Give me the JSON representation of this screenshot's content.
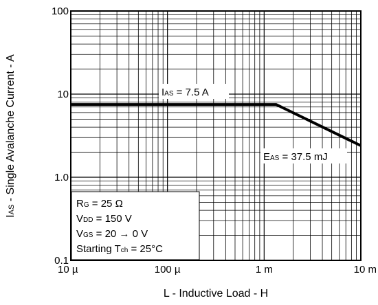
{
  "chart_data": {
    "type": "line",
    "x_scale": "log",
    "y_scale": "log",
    "xlim": [
      1e-05,
      0.01
    ],
    "ylim": [
      0.1,
      100
    ],
    "grid": true,
    "xlabel": "L - Inductive Load - H",
    "ylabel": "IAS - Single Avalanche Current - A",
    "x_ticks": [
      {
        "value": 1e-05,
        "label": "10 µ"
      },
      {
        "value": 0.0001,
        "label": "100 µ"
      },
      {
        "value": 0.001,
        "label": "1 m"
      },
      {
        "value": 0.01,
        "label": "10 m"
      }
    ],
    "y_ticks": [
      {
        "value": 0.1,
        "label": "0.1"
      },
      {
        "value": 1,
        "label": "1.0"
      },
      {
        "value": 10,
        "label": "10"
      },
      {
        "value": 100,
        "label": "100"
      }
    ],
    "series": [
      {
        "x": [
          1e-05,
          0.00133,
          0.01
        ],
        "y": [
          7.5,
          7.5,
          2.4
        ]
      }
    ],
    "annotations": {
      "ias": {
        "main": "I",
        "sub": "AS",
        "rest": " = 7.5 A"
      },
      "eas": {
        "main": "E",
        "sub": "AS",
        "rest": " = 37.5 mJ"
      }
    },
    "conditions": [
      {
        "main": "R",
        "sub": "G",
        "rest": " = 25 Ω"
      },
      {
        "main": "V",
        "sub": "DD",
        "rest": " = 150 V"
      },
      {
        "main": "V",
        "sub": "GS",
        "rest": " = 20 → 0 V"
      },
      {
        "main": "Starting T",
        "sub": "ch",
        "rest": " = 25°C"
      }
    ]
  }
}
